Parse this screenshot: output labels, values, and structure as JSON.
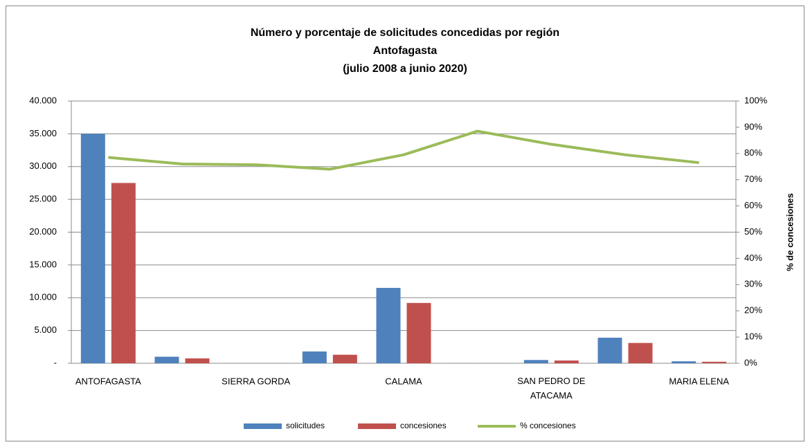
{
  "chart_data": {
    "type": "bar",
    "title": [
      "Número y porcentaje de solicitudes concedidas por región",
      "Antofagasta",
      "(julio 2008 a   junio 2020)"
    ],
    "categories": [
      "ANTOFAGASTA",
      null,
      "SIERRA GORDA",
      null,
      "CALAMA",
      null,
      "SAN PEDRO DE ATACAMA",
      null,
      "MARIA ELENA"
    ],
    "series": [
      {
        "name": "solicitudes",
        "color": "#4f81bd",
        "type": "bar",
        "values": [
          35000,
          1000,
          20,
          1800,
          11500,
          10,
          500,
          3900,
          300
        ]
      },
      {
        "name": "concesiones",
        "color": "#c0504d",
        "type": "bar",
        "values": [
          27500,
          750,
          15,
          1300,
          9200,
          9,
          420,
          3100,
          230
        ]
      },
      {
        "name": "% concesiones",
        "color": "#9bbb59",
        "type": "line",
        "axis": "y2",
        "values": [
          78.5,
          76,
          75.7,
          74,
          79.5,
          88.5,
          83.5,
          79.5,
          76.5
        ]
      }
    ],
    "ylim": [
      0,
      40000
    ],
    "yticks": [
      {
        "value": 0,
        "label": "-"
      },
      {
        "value": 5000,
        "label": "5.000"
      },
      {
        "value": 10000,
        "label": "10.000"
      },
      {
        "value": 15000,
        "label": "15.000"
      },
      {
        "value": 20000,
        "label": "20.000"
      },
      {
        "value": 25000,
        "label": "25.000"
      },
      {
        "value": 30000,
        "label": "30.000"
      },
      {
        "value": 35000,
        "label": "35.000"
      },
      {
        "value": 40000,
        "label": "40.000"
      }
    ],
    "y2lim": [
      0,
      100
    ],
    "y2ticks": [
      {
        "value": 0,
        "label": "0%"
      },
      {
        "value": 10,
        "label": "10%"
      },
      {
        "value": 20,
        "label": "20%"
      },
      {
        "value": 30,
        "label": "30%"
      },
      {
        "value": 40,
        "label": "40%"
      },
      {
        "value": 50,
        "label": "50%"
      },
      {
        "value": 60,
        "label": "60%"
      },
      {
        "value": 70,
        "label": "70%"
      },
      {
        "value": 80,
        "label": "80%"
      },
      {
        "value": 90,
        "label": "90%"
      },
      {
        "value": 100,
        "label": "100%"
      }
    ],
    "y2label": "% de concesiones",
    "grid": true,
    "legend": "bottom"
  }
}
